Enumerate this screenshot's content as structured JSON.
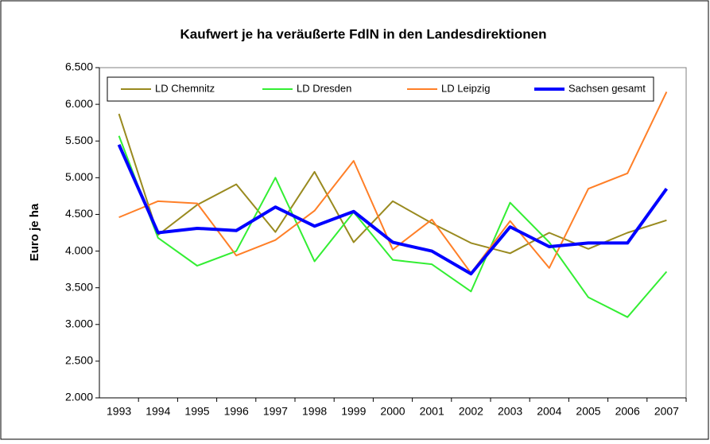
{
  "chart_data": {
    "type": "line",
    "title": "Kaufwert je ha veräußerte FdlN in den Landesdirektionen",
    "y_label": "Euro je ha",
    "categories": [
      "1993",
      "1994",
      "1995",
      "1996",
      "1997",
      "1998",
      "1999",
      "2000",
      "2001",
      "2002",
      "2003",
      "2004",
      "2005",
      "2006",
      "2007"
    ],
    "series": [
      {
        "name": "LD Chemnitz",
        "color": "#998a1f",
        "width": 2,
        "values": [
          5870,
          4220,
          4630,
          4910,
          4260,
          5080,
          4120,
          4680,
          4380,
          4110,
          3970,
          4250,
          4030,
          4250,
          4420
        ]
      },
      {
        "name": "LD Dresden",
        "color": "#33ee33",
        "width": 2,
        "values": [
          5570,
          4180,
          3800,
          4000,
          5000,
          3860,
          4530,
          3880,
          3820,
          3450,
          4660,
          4120,
          3370,
          3100,
          3720
        ]
      },
      {
        "name": "LD Leipzig",
        "color": "#ff7f27",
        "width": 2,
        "values": [
          4460,
          4680,
          4650,
          3940,
          4150,
          4550,
          5230,
          4020,
          4430,
          3700,
          4410,
          3770,
          4850,
          5060,
          6170
        ]
      },
      {
        "name": "Sachsen gesamt",
        "color": "#0000ff",
        "width": 4,
        "values": [
          5450,
          4250,
          4310,
          4280,
          4600,
          4340,
          4540,
          4120,
          4000,
          3690,
          4330,
          4060,
          4110,
          4110,
          4850
        ]
      }
    ],
    "ylim": [
      2000,
      6500
    ],
    "yticks": [
      {
        "value": 2000,
        "label": "2.000"
      },
      {
        "value": 2500,
        "label": "2.500"
      },
      {
        "value": 3000,
        "label": "3.000"
      },
      {
        "value": 3500,
        "label": "3.500"
      },
      {
        "value": 4000,
        "label": "4.000"
      },
      {
        "value": 4500,
        "label": "4.500"
      },
      {
        "value": 5000,
        "label": "5.000"
      },
      {
        "value": 5500,
        "label": "5.500"
      },
      {
        "value": 6000,
        "label": "6.000"
      },
      {
        "value": 6500,
        "label": "6.500"
      }
    ],
    "legend": "top"
  }
}
